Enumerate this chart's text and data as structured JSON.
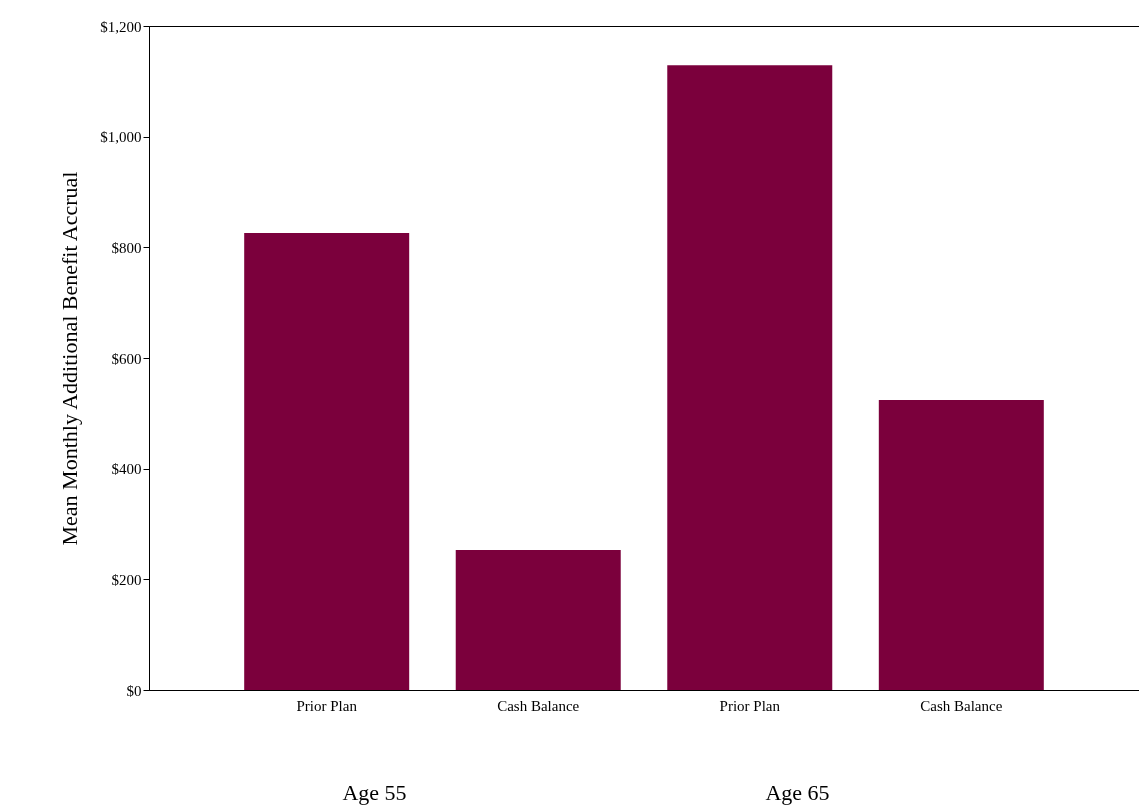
{
  "chart_data": {
    "type": "bar",
    "ylabel": "Mean Monthly Additional Benefit Accrual",
    "categories": [
      "Prior Plan",
      "Cash Balance",
      "Prior Plan",
      "Cash Balance"
    ],
    "values": [
      826,
      253,
      1129,
      524
    ],
    "color": "#7b003c",
    "ylim": [
      0,
      1200
    ],
    "yticks": [
      {
        "value": 0,
        "label": "$0"
      },
      {
        "value": 200,
        "label": "$200"
      },
      {
        "value": 400,
        "label": "$400"
      },
      {
        "value": 600,
        "label": "$600"
      },
      {
        "value": 800,
        "label": "$800"
      },
      {
        "value": 1000,
        "label": "$1,000"
      },
      {
        "value": 1200,
        "label": "$1,200"
      }
    ],
    "grid": false,
    "annotations": [
      "Age 55",
      "Age 65"
    ]
  }
}
